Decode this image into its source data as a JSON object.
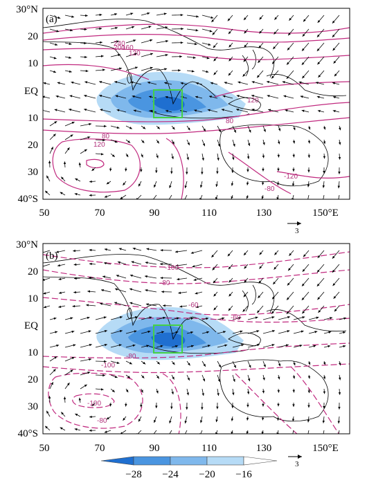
{
  "colors": {
    "contour": "#c0287e",
    "shade_1": "#1f6fd0",
    "shade_2": "#4a95e0",
    "shade_3": "#7fb8ec",
    "shade_4": "#b6dbf6",
    "box": "#45d145",
    "coast": "#000000"
  },
  "lat_ticks": [
    "30°N",
    "20",
    "10",
    "EQ",
    "10",
    "20",
    "30",
    "40°S"
  ],
  "lon_ticks": [
    "50",
    "70",
    "90",
    "110",
    "130",
    "150°E"
  ],
  "ref_vector_label": "3",
  "panels": [
    {
      "id": "panel-a",
      "label": "(a)",
      "contour_style": "solid",
      "contour_labels": [
        "240",
        "200",
        "160",
        "120",
        "120",
        "80",
        "80",
        "120",
        "-120",
        "-80"
      ]
    },
    {
      "id": "panel-b",
      "label": "(b)",
      "contour_style": "dashed",
      "contour_labels": [
        "-100",
        "-80",
        "-60",
        "-60",
        "-80",
        "-100",
        "-100",
        "-80"
      ]
    }
  ],
  "colorbar": {
    "ticks": [
      "−28",
      "−24",
      "−20",
      "−16"
    ],
    "ref_vector_label": "3"
  }
}
